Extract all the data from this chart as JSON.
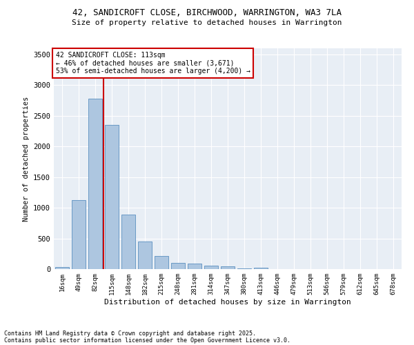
{
  "title_line1": "42, SANDICROFT CLOSE, BIRCHWOOD, WARRINGTON, WA3 7LA",
  "title_line2": "Size of property relative to detached houses in Warrington",
  "xlabel": "Distribution of detached houses by size in Warrington",
  "ylabel": "Number of detached properties",
  "bar_color": "#adc6e0",
  "bar_edge_color": "#5a8fc0",
  "bg_color": "#e8eef5",
  "categories": [
    "16sqm",
    "49sqm",
    "82sqm",
    "115sqm",
    "148sqm",
    "182sqm",
    "215sqm",
    "248sqm",
    "281sqm",
    "314sqm",
    "347sqm",
    "380sqm",
    "413sqm",
    "446sqm",
    "479sqm",
    "513sqm",
    "546sqm",
    "579sqm",
    "612sqm",
    "645sqm",
    "678sqm"
  ],
  "values": [
    35,
    1120,
    2780,
    2350,
    890,
    445,
    210,
    100,
    85,
    55,
    40,
    10,
    20,
    5,
    5,
    5,
    5,
    5,
    5,
    5,
    5
  ],
  "vline_color": "#cc0000",
  "annotation_text": "42 SANDICROFT CLOSE: 113sqm\n← 46% of detached houses are smaller (3,671)\n53% of semi-detached houses are larger (4,200) →",
  "annotation_box_color": "#cc0000",
  "ylim": [
    0,
    3600
  ],
  "yticks": [
    0,
    500,
    1000,
    1500,
    2000,
    2500,
    3000,
    3500
  ],
  "footer1": "Contains HM Land Registry data © Crown copyright and database right 2025.",
  "footer2": "Contains public sector information licensed under the Open Government Licence v3.0."
}
